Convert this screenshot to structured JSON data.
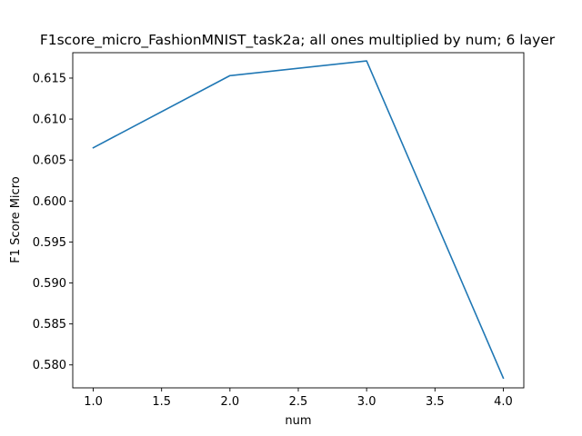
{
  "chart_data": {
    "type": "line",
    "title": "F1score_micro_FashionMNIST_task2a; all ones multiplied by num; 6 layer",
    "xlabel": "num",
    "ylabel": "F1 Score Micro",
    "xlim": [
      0.85,
      4.15
    ],
    "ylim": [
      0.5772,
      0.6181
    ],
    "xticks": [
      1.0,
      1.5,
      2.0,
      2.5,
      3.0,
      3.5,
      4.0
    ],
    "xtick_labels": [
      "1.0",
      "1.5",
      "2.0",
      "2.5",
      "3.0",
      "3.5",
      "4.0"
    ],
    "yticks": [
      0.58,
      0.585,
      0.59,
      0.595,
      0.6,
      0.605,
      0.61,
      0.615
    ],
    "ytick_labels": [
      "0.580",
      "0.585",
      "0.590",
      "0.595",
      "0.600",
      "0.605",
      "0.610",
      "0.615"
    ],
    "grid": false,
    "series": [
      {
        "color": "#1f77b4",
        "x": [
          1.0,
          2.0,
          3.0,
          4.0
        ],
        "y": [
          0.6065,
          0.6153,
          0.6171,
          0.5784
        ]
      }
    ]
  }
}
